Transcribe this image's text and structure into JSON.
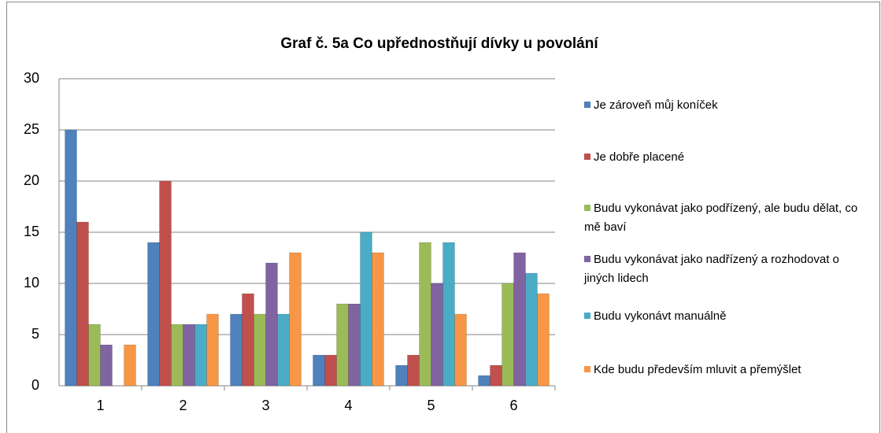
{
  "chart_data": {
    "type": "bar",
    "title": "Graf č. 5a Co upřednostňují dívky u povolání",
    "categories": [
      "1",
      "2",
      "3",
      "4",
      "5",
      "6"
    ],
    "series": [
      {
        "name": "Je zároveň můj koníček",
        "color": "#4f81bd",
        "values": [
          25,
          14,
          7,
          3,
          2,
          1
        ]
      },
      {
        "name": "Je dobře placené",
        "color": "#c0504d",
        "values": [
          16,
          20,
          9,
          3,
          3,
          2
        ]
      },
      {
        "name": "Budu vykonávat jako podřízený, ale budu dělat, co mě baví",
        "color": "#9bbb59",
        "values": [
          6,
          6,
          7,
          8,
          14,
          10
        ]
      },
      {
        "name": "Budu vykonávat jako nadřízený a rozhodovat o jiných lidech",
        "color": "#8064a2",
        "values": [
          4,
          6,
          12,
          8,
          10,
          13
        ]
      },
      {
        "name": "Budu vykonávt manuálně",
        "color": "#4bacc6",
        "values": [
          0,
          6,
          7,
          15,
          14,
          11
        ]
      },
      {
        "name": "Kde budu především mluvit a přemýšlet",
        "color": "#f79646",
        "values": [
          4,
          7,
          13,
          13,
          7,
          9
        ]
      }
    ],
    "ylim": [
      0,
      30
    ],
    "yticks": [
      0,
      5,
      10,
      15,
      20,
      25,
      30
    ],
    "grid": true,
    "legend": "right"
  }
}
